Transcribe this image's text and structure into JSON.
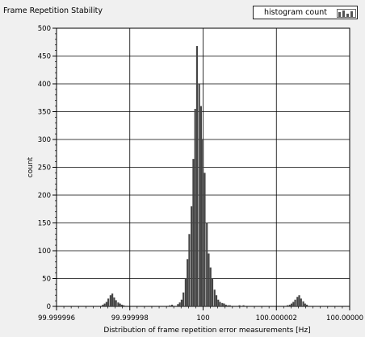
{
  "chart_data": {
    "type": "bar",
    "title": "Frame Repetition Stability",
    "xlabel": "Distribution of frame repetition error measurements [Hz]",
    "ylabel": "count",
    "legend": {
      "label": "histogram count",
      "position": "top-right"
    },
    "xlim": [
      99.999996,
      100.000004
    ],
    "ylim": [
      0,
      500
    ],
    "x_ticks": [
      "99.999996",
      "99.999998",
      "100",
      "100.000002",
      "100.00000"
    ],
    "y_ticks": [
      0,
      50,
      100,
      150,
      200,
      250,
      300,
      350,
      400,
      450,
      500
    ],
    "grid": true,
    "bar_color": "#444444",
    "bin_width": 5.28e-08,
    "series": [
      {
        "name": "histogram count",
        "x": [
          99.99999724,
          99.99999729,
          99.99999734,
          99.99999739,
          99.99999745,
          99.9999975,
          99.99999755,
          99.9999976,
          99.99999766,
          99.99999771,
          99.99999776,
          99.99999781,
          99.99999787,
          99.9999985,
          99.99999855,
          99.99999902,
          99.99999907,
          99.99999913,
          99.99999929,
          99.99999934,
          99.99999939,
          99.99999944,
          99.9999995,
          99.99999955,
          99.9999996,
          99.99999966,
          99.99999971,
          99.99999976,
          99.99999981,
          99.99999987,
          99.99999992,
          99.99999997,
          100.00000002,
          100.00000008,
          100.00000013,
          100.00000018,
          100.00000023,
          100.00000029,
          100.00000034,
          100.00000039,
          100.00000044,
          100.0000005,
          100.00000055,
          100.0000006,
          100.00000066,
          100.00000071,
          100.00000076,
          100.00000097,
          100.00000102,
          100.00000108,
          100.00000113,
          100.00000118,
          100.00000228,
          100.00000234,
          100.00000239,
          100.00000244,
          100.00000249,
          100.00000255,
          100.0000026,
          100.00000265,
          100.00000271,
          100.00000276,
          100.00000281
        ],
        "values": [
          3,
          5,
          8,
          14,
          20,
          23,
          16,
          11,
          7,
          5,
          3,
          2,
          1,
          1,
          1,
          1,
          2,
          3,
          4,
          7,
          12,
          25,
          50,
          85,
          130,
          180,
          265,
          355,
          468,
          400,
          360,
          300,
          240,
          150,
          95,
          70,
          50,
          30,
          20,
          12,
          8,
          6,
          5,
          3,
          2,
          2,
          1,
          2,
          1,
          2,
          1,
          1,
          2,
          3,
          5,
          8,
          12,
          17,
          20,
          14,
          9,
          5,
          3
        ]
      }
    ]
  }
}
